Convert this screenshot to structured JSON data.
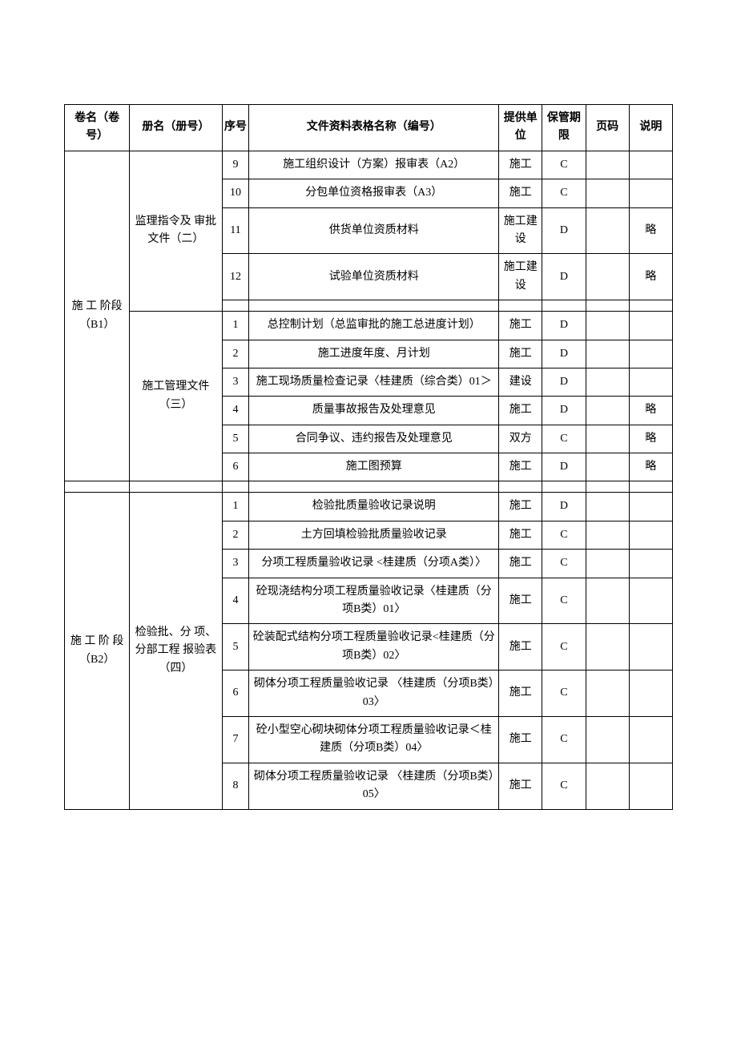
{
  "headers": {
    "vol_name": "卷名（卷号）",
    "book_name": "册名（册号）",
    "seq": "序号",
    "doc_name": "文件资料表格名称（编号）",
    "provider": "提供单位",
    "period": "保管期限",
    "page": "页码",
    "note": "说明"
  },
  "volumes": {
    "b1": "施 工 阶段 （B1）",
    "b2": "施   工 阶 段（B2）"
  },
  "books": {
    "book2": "监理指令及 审批文件（二）",
    "book3": "施工管理文件（三）",
    "book4": "检验批、分 项、分部工程 报验表（四）"
  },
  "rows": [
    {
      "seq": "9",
      "name": "施工组织设计（方案）报审表（A2）",
      "provider": "施工",
      "period": "C",
      "page": "",
      "note": ""
    },
    {
      "seq": "10",
      "name": "分包单位资格报审表（A3）",
      "provider": "施工",
      "period": "C",
      "page": "",
      "note": ""
    },
    {
      "seq": "11",
      "name": "供货单位资质材料",
      "provider": "施工建设",
      "period": "D",
      "page": "",
      "note": "略"
    },
    {
      "seq": "12",
      "name": "试验单位资质材料",
      "provider": "施工建设",
      "period": "D",
      "page": "",
      "note": "略"
    },
    {
      "seq": "1",
      "name": "总控制计划（总监审批的施工总进度计划）",
      "provider": "施工",
      "period": "D",
      "page": "",
      "note": ""
    },
    {
      "seq": "2",
      "name": "施工进度年度、月计划",
      "provider": "施工",
      "period": "D",
      "page": "",
      "note": ""
    },
    {
      "seq": "3",
      "name": "施工现场质量检查记录〈桂建质（综合类）01＞",
      "provider": "建设",
      "period": "D",
      "page": "",
      "note": ""
    },
    {
      "seq": "4",
      "name": "质量事故报告及处理意见",
      "provider": "施工",
      "period": "D",
      "page": "",
      "note": "略"
    },
    {
      "seq": "5",
      "name": "合同争议、违约报告及处理意见",
      "provider": "双方",
      "period": "C",
      "page": "",
      "note": "略"
    },
    {
      "seq": "6",
      "name": "施工图预算",
      "provider": "施工",
      "period": "D",
      "page": "",
      "note": "略"
    },
    {
      "seq": "1",
      "name": "检验批质量验收记录说明",
      "provider": "施工",
      "period": "D",
      "page": "",
      "note": ""
    },
    {
      "seq": "2",
      "name": "土方回填检验批质量验收记录",
      "provider": "施工",
      "period": "C",
      "page": "",
      "note": ""
    },
    {
      "seq": "3",
      "name": "分项工程质量验收记录\n<桂建质（分项A类）〉",
      "provider": "施工",
      "period": "C",
      "page": "",
      "note": ""
    },
    {
      "seq": "4",
      "name": "砼现浇结构分项工程质量验收记录〈桂建质（分项B类）01〉",
      "provider": "施工",
      "period": "C",
      "page": "",
      "note": ""
    },
    {
      "seq": "5",
      "name": "砼装配式结构分项工程质量验收记录<桂建质（分项B类）02〉",
      "provider": "施工",
      "period": "C",
      "page": "",
      "note": ""
    },
    {
      "seq": "6",
      "name": "砌体分项工程质量验收记录 〈桂建质（分项B类）03〉",
      "provider": "施工",
      "period": "C",
      "page": "",
      "note": ""
    },
    {
      "seq": "7",
      "name": "砼小型空心砌块砌体分项工程质量验收记录＜桂建质（分项B类）04〉",
      "provider": "施工",
      "period": "C",
      "page": "",
      "note": ""
    },
    {
      "seq": "8",
      "name": "砌体分项工程质量验收记录 〈桂建质（分项B类）05〉",
      "provider": "施工",
      "period": "C",
      "page": "",
      "note": ""
    }
  ]
}
